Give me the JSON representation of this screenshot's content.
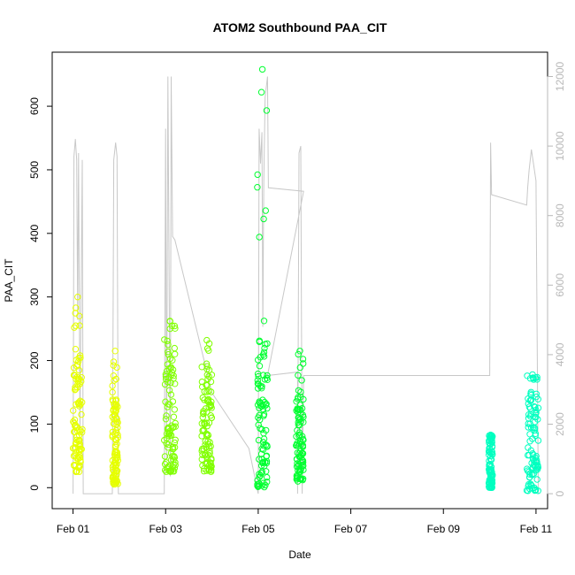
{
  "chart_data": {
    "type": "scatter",
    "title": "ATOM2 Southbound PAA_CIT",
    "xlabel": "Date",
    "ylabel": "PAA_CIT",
    "x_ticks": [
      "Feb 01",
      "Feb 03",
      "Feb 05",
      "Feb 07",
      "Feb 09",
      "Feb 11"
    ],
    "x_tick_days": [
      1,
      3,
      5,
      7,
      9,
      11
    ],
    "xlim": [
      0.55,
      11.25
    ],
    "ylim": [
      -33,
      685
    ],
    "y_ticks": [
      0,
      100,
      200,
      300,
      400,
      500,
      600
    ],
    "y2_ticks": [
      0,
      2000,
      4000,
      6000,
      8000,
      10000,
      12000
    ],
    "y2lim": [
      -430,
      12700
    ],
    "grid": false,
    "colors": {
      "day1": "#e6ff00",
      "day2": "#80ff00",
      "day3": "#00ff30",
      "day4": "#00ffc0",
      "line": "#c8c8c8"
    },
    "point_clusters": [
      {
        "day_start": 1.0,
        "day_end": 1.2,
        "low": 25,
        "high": 205,
        "outlier_high": 300,
        "color": "#e6ff00"
      },
      {
        "day_start": 1.85,
        "day_end": 1.97,
        "low": 5,
        "high": 140,
        "outlier_high": 215,
        "color": "#e6ff00"
      },
      {
        "day_start": 2.97,
        "day_end": 3.22,
        "low": 25,
        "high": 220,
        "outlier_high": 262,
        "color": "#80ff00"
      },
      {
        "day_start": 3.78,
        "day_end": 4.0,
        "low": 25,
        "high": 185,
        "outlier_high": 232,
        "color": "#80ff00"
      },
      {
        "day_start": 4.98,
        "day_end": 5.2,
        "low": 0,
        "high": 240,
        "outlier_high": 658,
        "color": "#00ff30"
      },
      {
        "day_start": 5.82,
        "day_end": 5.98,
        "low": 10,
        "high": 150,
        "outlier_high": 215,
        "color": "#00ff30"
      },
      {
        "day_start": 9.98,
        "day_end": 10.06,
        "low": 0,
        "high": 80,
        "outlier_high": 83,
        "color": "#00ffc0"
      },
      {
        "day_start": 10.8,
        "day_end": 11.05,
        "low": -5,
        "high": 170,
        "outlier_high": 178,
        "color": "#00ffc0"
      }
    ],
    "secondary_line": [
      [
        1.0,
        0
      ],
      [
        1.02,
        9700
      ],
      [
        1.05,
        10200
      ],
      [
        1.08,
        9600
      ],
      [
        1.1,
        5000
      ],
      [
        1.12,
        9800
      ],
      [
        1.15,
        1800
      ],
      [
        1.2,
        9600
      ],
      [
        1.22,
        0
      ],
      [
        1.85,
        0
      ],
      [
        1.88,
        9600
      ],
      [
        1.92,
        10100
      ],
      [
        1.95,
        9700
      ],
      [
        1.98,
        0
      ],
      [
        2.97,
        0
      ],
      [
        3.0,
        10500
      ],
      [
        3.02,
        1000
      ],
      [
        3.05,
        12000
      ],
      [
        3.1,
        500
      ],
      [
        3.12,
        12000
      ],
      [
        3.15,
        7400
      ],
      [
        3.2,
        7300
      ],
      [
        4.0,
        2900
      ],
      [
        4.8,
        1300
      ],
      [
        5.0,
        0
      ],
      [
        5.02,
        10500
      ],
      [
        5.05,
        9500
      ],
      [
        5.08,
        10400
      ],
      [
        5.1,
        4800
      ],
      [
        5.12,
        9000
      ],
      [
        5.15,
        11400
      ],
      [
        5.2,
        12000
      ],
      [
        5.22,
        8800
      ],
      [
        5.98,
        8700
      ],
      [
        5.2,
        3400
      ],
      [
        5.85,
        3500
      ],
      [
        5.85,
        0
      ],
      [
        5.88,
        9800
      ],
      [
        5.92,
        10000
      ],
      [
        5.95,
        0
      ],
      [
        5.98,
        3400
      ],
      [
        10.0,
        3400
      ],
      [
        10.02,
        10100
      ],
      [
        10.04,
        8600
      ],
      [
        10.8,
        8300
      ],
      [
        10.82,
        8800
      ],
      [
        10.85,
        9300
      ],
      [
        10.9,
        9900
      ],
      [
        11.0,
        9000
      ],
      [
        11.05,
        0
      ]
    ]
  }
}
